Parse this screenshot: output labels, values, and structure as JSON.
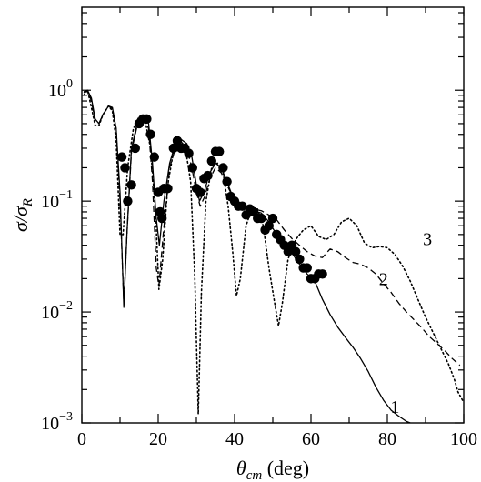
{
  "chart_data": {
    "type": "line",
    "title": "",
    "xlabel": {
      "symbol": "θ",
      "subscript": "cm",
      "unit": " (deg)"
    },
    "ylabel": {
      "symbol": "σ/σ",
      "subscript": "R"
    },
    "xlim": [
      0,
      100
    ],
    "ylim": [
      0.001,
      5.6
    ],
    "yscale": "log",
    "grid": false,
    "legend": "none",
    "x_ticks": [
      {
        "value": 0,
        "label": "0"
      },
      {
        "value": 20,
        "label": "20"
      },
      {
        "value": 40,
        "label": "40"
      },
      {
        "value": 60,
        "label": "60"
      },
      {
        "value": 80,
        "label": "80"
      },
      {
        "value": 100,
        "label": "100"
      }
    ],
    "y_ticks": [
      {
        "value": 0.001,
        "base": "10",
        "exp": "−3"
      },
      {
        "value": 0.01,
        "base": "10",
        "exp": "−2"
      },
      {
        "value": 0.1,
        "base": "10",
        "exp": "−1"
      },
      {
        "value": 1,
        "base": "10",
        "exp": "0"
      }
    ],
    "series": [
      {
        "name": "1",
        "style": "solid",
        "label_at": [
          82,
          0.0014
        ],
        "points": [
          [
            0.5,
            0.95
          ],
          [
            1.5,
            1.0
          ],
          [
            2.5,
            0.85
          ],
          [
            3.5,
            0.55
          ],
          [
            4.5,
            0.5
          ],
          [
            5.5,
            0.6
          ],
          [
            7,
            0.72
          ],
          [
            8,
            0.7
          ],
          [
            9,
            0.45
          ],
          [
            10,
            0.12
          ],
          [
            11,
            0.011
          ],
          [
            11.8,
            0.05
          ],
          [
            13,
            0.3
          ],
          [
            14.5,
            0.5
          ],
          [
            16,
            0.58
          ],
          [
            17.5,
            0.5
          ],
          [
            18.5,
            0.22
          ],
          [
            19.5,
            0.07
          ],
          [
            20.3,
            0.04
          ],
          [
            21.5,
            0.1
          ],
          [
            23,
            0.22
          ],
          [
            24.5,
            0.33
          ],
          [
            26,
            0.36
          ],
          [
            27.5,
            0.33
          ],
          [
            28.8,
            0.25
          ],
          [
            30,
            0.14
          ],
          [
            30.8,
            0.1
          ],
          [
            32,
            0.12
          ],
          [
            33.5,
            0.18
          ],
          [
            35,
            0.22
          ],
          [
            36.5,
            0.2
          ],
          [
            38,
            0.15
          ],
          [
            39.5,
            0.11
          ],
          [
            41,
            0.092
          ],
          [
            43,
            0.088
          ],
          [
            45,
            0.082
          ],
          [
            47,
            0.078
          ],
          [
            49,
            0.065
          ],
          [
            51,
            0.05
          ],
          [
            53,
            0.042
          ],
          [
            55,
            0.034
          ],
          [
            57,
            0.027
          ],
          [
            59,
            0.022
          ],
          [
            61,
            0.019
          ],
          [
            63,
            0.013
          ],
          [
            65,
            0.0095
          ],
          [
            67,
            0.0073
          ],
          [
            69,
            0.0059
          ],
          [
            71,
            0.0048
          ],
          [
            73,
            0.0038
          ],
          [
            75,
            0.0029
          ],
          [
            77,
            0.0021
          ],
          [
            79,
            0.0016
          ],
          [
            81,
            0.0013
          ],
          [
            83,
            0.00115
          ],
          [
            85,
            0.00103
          ],
          [
            86,
            0.001
          ]
        ]
      },
      {
        "name": "2",
        "style": "dashed",
        "label_at": [
          79,
          0.02
        ],
        "points": [
          [
            0.5,
            0.97
          ],
          [
            1.5,
            1.0
          ],
          [
            2.5,
            0.8
          ],
          [
            3.5,
            0.52
          ],
          [
            4.5,
            0.5
          ],
          [
            5.5,
            0.6
          ],
          [
            7,
            0.72
          ],
          [
            8,
            0.68
          ],
          [
            9,
            0.45
          ],
          [
            10,
            0.1
          ],
          [
            11,
            0.012
          ],
          [
            11.8,
            0.05
          ],
          [
            13,
            0.28
          ],
          [
            14.5,
            0.48
          ],
          [
            16,
            0.58
          ],
          [
            17.5,
            0.45
          ],
          [
            18.5,
            0.15
          ],
          [
            19.5,
            0.025
          ],
          [
            20.2,
            0.017
          ],
          [
            21.3,
            0.05
          ],
          [
            23,
            0.2
          ],
          [
            24.5,
            0.3
          ],
          [
            26,
            0.33
          ],
          [
            27.5,
            0.3
          ],
          [
            28.8,
            0.2
          ],
          [
            30,
            0.12
          ],
          [
            31,
            0.09
          ],
          [
            32.2,
            0.11
          ],
          [
            33.5,
            0.16
          ],
          [
            35,
            0.2
          ],
          [
            36.5,
            0.18
          ],
          [
            38,
            0.14
          ],
          [
            39.5,
            0.11
          ],
          [
            41,
            0.095
          ],
          [
            43,
            0.09
          ],
          [
            45,
            0.085
          ],
          [
            47,
            0.082
          ],
          [
            49,
            0.075
          ],
          [
            51,
            0.068
          ],
          [
            53,
            0.055
          ],
          [
            55,
            0.046
          ],
          [
            57,
            0.04
          ],
          [
            59,
            0.035
          ],
          [
            61,
            0.032
          ],
          [
            63,
            0.031
          ],
          [
            65,
            0.037
          ],
          [
            67,
            0.035
          ],
          [
            69,
            0.031
          ],
          [
            71,
            0.028
          ],
          [
            73,
            0.027
          ],
          [
            75,
            0.025
          ],
          [
            77,
            0.022
          ],
          [
            79,
            0.018
          ],
          [
            81,
            0.015
          ],
          [
            83,
            0.012
          ],
          [
            85,
            0.01
          ],
          [
            87,
            0.0085
          ],
          [
            89,
            0.0072
          ],
          [
            91,
            0.006
          ],
          [
            93,
            0.0052
          ],
          [
            95,
            0.0045
          ],
          [
            97,
            0.0038
          ],
          [
            99,
            0.0033
          ]
        ]
      },
      {
        "name": "3",
        "style": "dotted",
        "label_at": [
          90.5,
          0.046
        ],
        "points": [
          [
            0.5,
            0.9
          ],
          [
            1.5,
            1.0
          ],
          [
            2.5,
            0.7
          ],
          [
            3.5,
            0.48
          ],
          [
            4.5,
            0.48
          ],
          [
            5.5,
            0.6
          ],
          [
            7,
            0.72
          ],
          [
            8,
            0.65
          ],
          [
            9,
            0.35
          ],
          [
            10,
            0.05
          ],
          [
            10.8,
            0.05
          ],
          [
            12,
            0.2
          ],
          [
            13.5,
            0.45
          ],
          [
            15,
            0.58
          ],
          [
            16.5,
            0.55
          ],
          [
            18,
            0.3
          ],
          [
            19.3,
            0.08
          ],
          [
            20.2,
            0.016
          ],
          [
            21.2,
            0.03
          ],
          [
            22.5,
            0.14
          ],
          [
            24,
            0.28
          ],
          [
            25.5,
            0.35
          ],
          [
            27,
            0.32
          ],
          [
            28.5,
            0.15
          ],
          [
            29.6,
            0.02
          ],
          [
            30.5,
            0.0012
          ],
          [
            31.3,
            0.015
          ],
          [
            32.5,
            0.1
          ],
          [
            34,
            0.2
          ],
          [
            35.5,
            0.22
          ],
          [
            37,
            0.18
          ],
          [
            38.3,
            0.09
          ],
          [
            39.5,
            0.035
          ],
          [
            40.5,
            0.014
          ],
          [
            41.5,
            0.02
          ],
          [
            43,
            0.06
          ],
          [
            44.5,
            0.085
          ],
          [
            46,
            0.085
          ],
          [
            47.5,
            0.06
          ],
          [
            49,
            0.025
          ],
          [
            50.5,
            0.012
          ],
          [
            51.5,
            0.0075
          ],
          [
            52.5,
            0.012
          ],
          [
            54,
            0.03
          ],
          [
            56,
            0.045
          ],
          [
            58,
            0.055
          ],
          [
            60,
            0.06
          ],
          [
            62,
            0.048
          ],
          [
            64,
            0.045
          ],
          [
            66,
            0.05
          ],
          [
            68,
            0.065
          ],
          [
            70,
            0.07
          ],
          [
            72,
            0.06
          ],
          [
            74,
            0.042
          ],
          [
            76,
            0.038
          ],
          [
            78,
            0.039
          ],
          [
            80,
            0.038
          ],
          [
            82,
            0.033
          ],
          [
            84,
            0.026
          ],
          [
            86,
            0.019
          ],
          [
            88,
            0.013
          ],
          [
            90,
            0.009
          ],
          [
            92,
            0.0065
          ],
          [
            94,
            0.0047
          ],
          [
            96,
            0.0034
          ],
          [
            97.5,
            0.0025
          ],
          [
            98.5,
            0.0019
          ],
          [
            99.7,
            0.0016
          ]
        ]
      },
      {
        "name": "",
        "style": "markers",
        "points": [
          [
            10.5,
            0.25
          ],
          [
            11.3,
            0.2
          ],
          [
            12,
            0.1
          ],
          [
            13,
            0.14
          ],
          [
            14,
            0.3
          ],
          [
            15,
            0.5
          ],
          [
            16,
            0.55
          ],
          [
            17,
            0.55
          ],
          [
            18,
            0.4
          ],
          [
            19,
            0.25
          ],
          [
            20,
            0.12
          ],
          [
            20.5,
            0.08
          ],
          [
            21,
            0.07
          ],
          [
            21.5,
            0.13
          ],
          [
            22.5,
            0.13
          ],
          [
            24,
            0.3
          ],
          [
            25,
            0.35
          ],
          [
            26,
            0.3
          ],
          [
            27,
            0.3
          ],
          [
            28,
            0.27
          ],
          [
            29,
            0.2
          ],
          [
            30,
            0.13
          ],
          [
            31,
            0.12
          ],
          [
            32,
            0.16
          ],
          [
            33,
            0.17
          ],
          [
            34,
            0.23
          ],
          [
            35,
            0.28
          ],
          [
            36,
            0.28
          ],
          [
            37,
            0.2
          ],
          [
            38,
            0.15
          ],
          [
            39,
            0.11
          ],
          [
            40,
            0.1
          ],
          [
            41,
            0.09
          ],
          [
            42,
            0.09
          ],
          [
            43,
            0.075
          ],
          [
            44,
            0.085
          ],
          [
            45,
            0.08
          ],
          [
            46,
            0.07
          ],
          [
            47,
            0.07
          ],
          [
            48,
            0.055
          ],
          [
            49,
            0.06
          ],
          [
            50,
            0.07
          ],
          [
            51,
            0.05
          ],
          [
            52,
            0.045
          ],
          [
            53,
            0.04
          ],
          [
            54,
            0.035
          ],
          [
            55,
            0.04
          ],
          [
            56,
            0.035
          ],
          [
            57,
            0.03
          ],
          [
            58,
            0.025
          ],
          [
            59,
            0.025
          ],
          [
            60,
            0.02
          ],
          [
            61,
            0.02
          ],
          [
            62,
            0.022
          ],
          [
            63,
            0.022
          ]
        ]
      }
    ]
  }
}
